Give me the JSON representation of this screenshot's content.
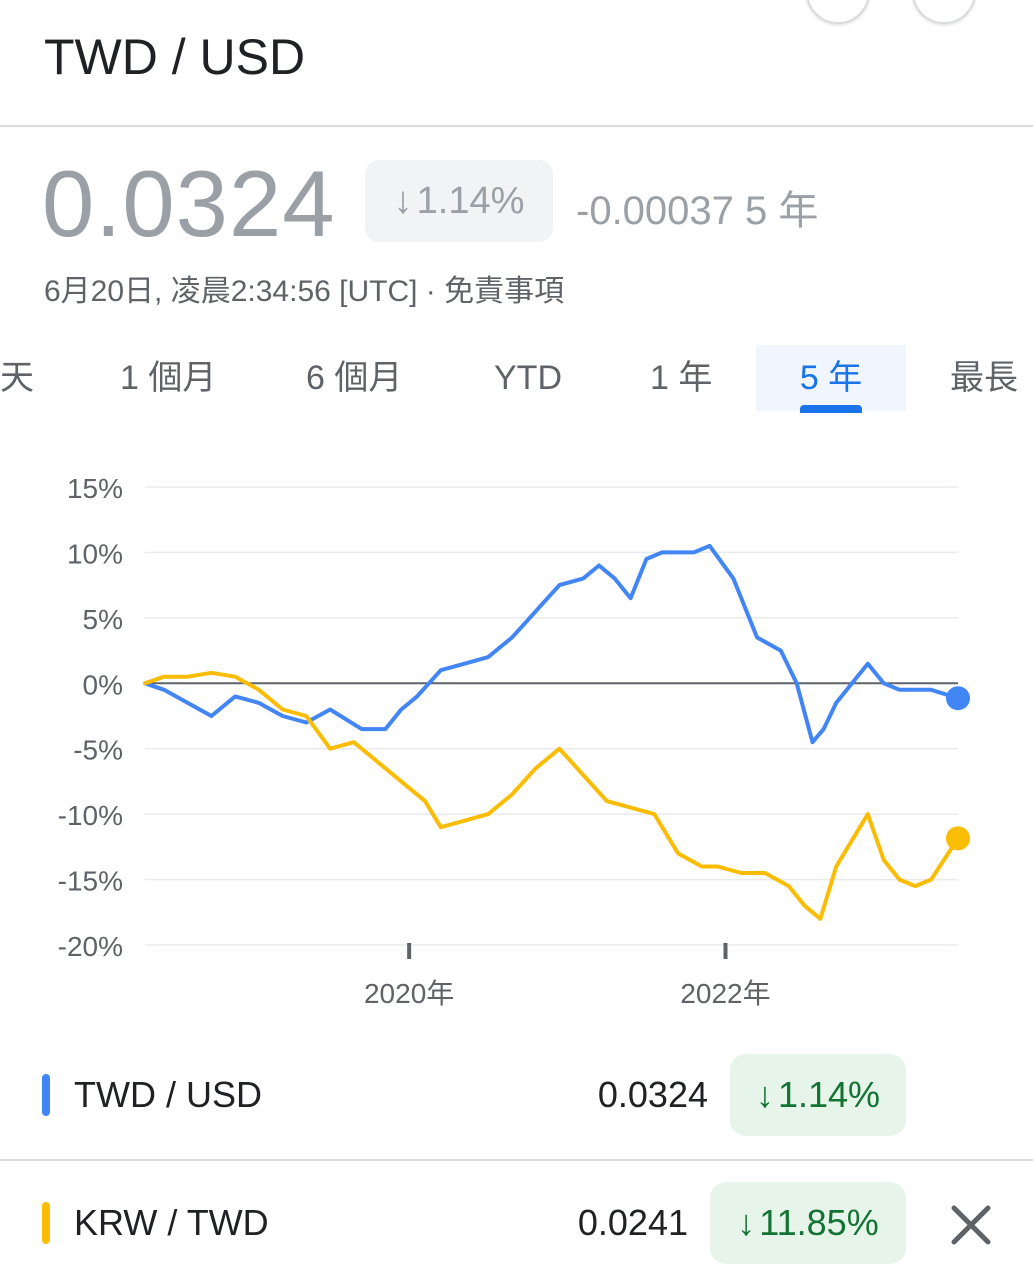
{
  "header": {
    "pair_title": "TWD / USD",
    "price": "0.0324",
    "change_pct": "1.14%",
    "change_abs": "-0.00037 5 年",
    "timestamp": "6月20日, 凌晨2:34:56 [UTC] · 免責事項",
    "arrow_icon": "arrow-down-icon"
  },
  "tabs": [
    {
      "label": "天",
      "active": false
    },
    {
      "label": "1 個月",
      "active": false
    },
    {
      "label": "6 個月",
      "active": false
    },
    {
      "label": "YTD",
      "active": false
    },
    {
      "label": "1 年",
      "active": false
    },
    {
      "label": "5 年",
      "active": true
    },
    {
      "label": "最長",
      "active": false
    }
  ],
  "comparisons": [
    {
      "name": "TWD / USD",
      "value": "0.0324",
      "change": "1.14%",
      "color": "#4285f4",
      "removable": false
    },
    {
      "name": "KRW / TWD",
      "value": "0.0241",
      "change": "11.85%",
      "color": "#fbbc04",
      "removable": true
    }
  ],
  "chart_data": {
    "type": "line",
    "ylim": [
      -20,
      15
    ],
    "y_ticks": [
      "15%",
      "10%",
      "5%",
      "0%",
      "-5%",
      "-10%",
      "-15%",
      "-20%"
    ],
    "y_tick_values": [
      15,
      10,
      5,
      0,
      -5,
      -10,
      -15,
      -20
    ],
    "x_ticks": [
      {
        "label": "2020年",
        "x": 2020.0
      },
      {
        "label": "2022年",
        "x": 2022.0
      }
    ],
    "xlim": [
      2018.33,
      2023.47
    ],
    "series": [
      {
        "name": "TWD / USD",
        "color": "#4285f4",
        "points": [
          [
            2018.33,
            0
          ],
          [
            2018.45,
            -0.5
          ],
          [
            2018.6,
            -1.5
          ],
          [
            2018.75,
            -2.5
          ],
          [
            2018.9,
            -1
          ],
          [
            2019.05,
            -1.5
          ],
          [
            2019.2,
            -2.5
          ],
          [
            2019.35,
            -3
          ],
          [
            2019.5,
            -2
          ],
          [
            2019.7,
            -3.5
          ],
          [
            2019.85,
            -3.5
          ],
          [
            2019.95,
            -2
          ],
          [
            2020.05,
            -1
          ],
          [
            2020.2,
            1
          ],
          [
            2020.35,
            1.5
          ],
          [
            2020.5,
            2
          ],
          [
            2020.65,
            3.5
          ],
          [
            2020.8,
            5.5
          ],
          [
            2020.95,
            7.5
          ],
          [
            2021.1,
            8
          ],
          [
            2021.2,
            9
          ],
          [
            2021.3,
            8
          ],
          [
            2021.4,
            6.5
          ],
          [
            2021.5,
            9.5
          ],
          [
            2021.6,
            10
          ],
          [
            2021.7,
            10
          ],
          [
            2021.8,
            10
          ],
          [
            2021.9,
            10.5
          ],
          [
            2022.05,
            8
          ],
          [
            2022.2,
            3.5
          ],
          [
            2022.35,
            2.5
          ],
          [
            2022.45,
            0
          ],
          [
            2022.55,
            -4.5
          ],
          [
            2022.62,
            -3.5
          ],
          [
            2022.7,
            -1.5
          ],
          [
            2022.8,
            0
          ],
          [
            2022.9,
            1.5
          ],
          [
            2023.0,
            0
          ],
          [
            2023.1,
            -0.5
          ],
          [
            2023.2,
            -0.5
          ],
          [
            2023.3,
            -0.5
          ],
          [
            2023.47,
            -1.14
          ]
        ]
      },
      {
        "name": "KRW / TWD",
        "color": "#fbbc04",
        "points": [
          [
            2018.33,
            0
          ],
          [
            2018.45,
            0.5
          ],
          [
            2018.6,
            0.5
          ],
          [
            2018.75,
            0.8
          ],
          [
            2018.9,
            0.5
          ],
          [
            2019.05,
            -0.5
          ],
          [
            2019.2,
            -2
          ],
          [
            2019.35,
            -2.5
          ],
          [
            2019.5,
            -5
          ],
          [
            2019.65,
            -4.5
          ],
          [
            2019.8,
            -6
          ],
          [
            2019.95,
            -7.5
          ],
          [
            2020.1,
            -9
          ],
          [
            2020.2,
            -11
          ],
          [
            2020.35,
            -10.5
          ],
          [
            2020.5,
            -10
          ],
          [
            2020.65,
            -8.5
          ],
          [
            2020.8,
            -6.5
          ],
          [
            2020.95,
            -5
          ],
          [
            2021.1,
            -7
          ],
          [
            2021.25,
            -9
          ],
          [
            2021.4,
            -9.5
          ],
          [
            2021.55,
            -10
          ],
          [
            2021.7,
            -13
          ],
          [
            2021.85,
            -14
          ],
          [
            2021.95,
            -14
          ],
          [
            2022.1,
            -14.5
          ],
          [
            2022.25,
            -14.5
          ],
          [
            2022.4,
            -15.5
          ],
          [
            2022.5,
            -17
          ],
          [
            2022.6,
            -18
          ],
          [
            2022.7,
            -14
          ],
          [
            2022.8,
            -12
          ],
          [
            2022.9,
            -10
          ],
          [
            2023.0,
            -13.5
          ],
          [
            2023.1,
            -15
          ],
          [
            2023.2,
            -15.5
          ],
          [
            2023.3,
            -15
          ],
          [
            2023.47,
            -11.85
          ]
        ]
      }
    ]
  }
}
